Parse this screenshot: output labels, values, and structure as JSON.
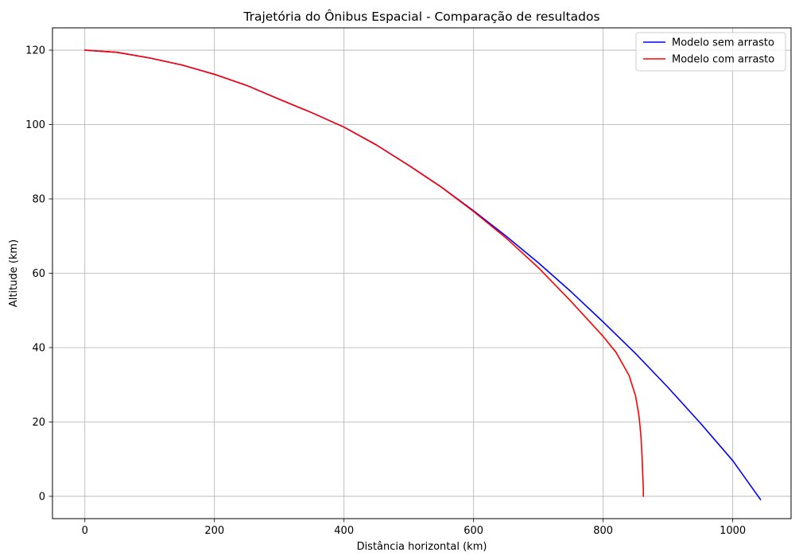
{
  "chart_data": {
    "type": "line",
    "title": "Trajetória do Ônibus Espacial - Comparação de resultados",
    "xlabel": "Distância horizontal (km)",
    "ylabel": "Altitude (km)",
    "xlim": [
      -50,
      1090
    ],
    "ylim": [
      -6,
      126
    ],
    "x_ticks": [
      0,
      200,
      400,
      600,
      800,
      1000
    ],
    "y_ticks": [
      0,
      20,
      40,
      60,
      80,
      100,
      120
    ],
    "grid": true,
    "legend_position": "top-right",
    "series": [
      {
        "name": "Modelo sem arrasto",
        "color": "#0000ff",
        "x": [
          0,
          50,
          100,
          150,
          200,
          250,
          300,
          350,
          400,
          450,
          500,
          550,
          600,
          650,
          700,
          750,
          800,
          850,
          900,
          950,
          1000,
          1043
        ],
        "y": [
          120,
          119.4,
          117.9,
          116.0,
          113.5,
          110.5,
          106.8,
          103.2,
          99.3,
          94.5,
          89.0,
          83.2,
          76.8,
          70.0,
          62.8,
          55.1,
          46.9,
          38.4,
          29.3,
          19.7,
          9.6,
          -0.9
        ]
      },
      {
        "name": "Modelo com arrasto",
        "color": "#ff0000",
        "x": [
          0,
          50,
          100,
          150,
          200,
          250,
          300,
          350,
          400,
          450,
          500,
          550,
          600,
          650,
          700,
          750,
          800,
          820,
          840,
          850,
          855,
          858,
          860,
          861,
          862,
          862,
          862
        ],
        "y": [
          120,
          119.4,
          117.9,
          116.0,
          113.5,
          110.5,
          106.8,
          103.2,
          99.3,
          94.5,
          89.0,
          83.2,
          76.6,
          69.5,
          61.5,
          52.5,
          43.0,
          38.7,
          32.5,
          27.0,
          22.0,
          17.0,
          11.0,
          6.0,
          2.0,
          0.5,
          0
        ]
      }
    ]
  }
}
